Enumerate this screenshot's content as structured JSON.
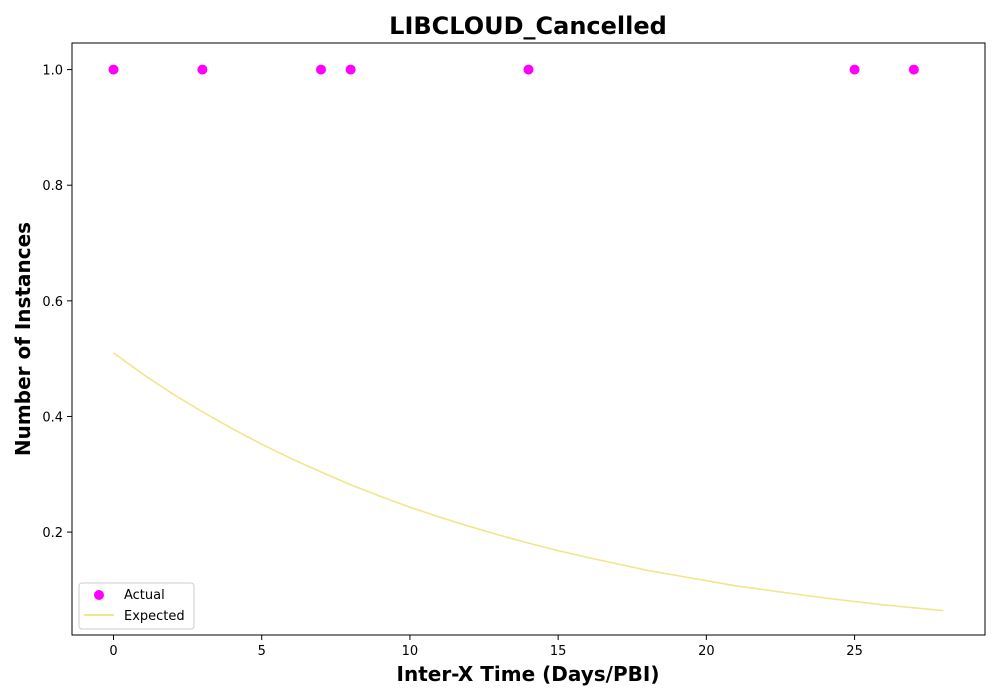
{
  "chart_data": {
    "type": "scatter",
    "title": "LIBCLOUD_Cancelled",
    "xlabel": "Inter-X Time (Days/PBI)",
    "ylabel": "Number of Instances",
    "xlim": [
      -1.4,
      29.4
    ],
    "ylim": [
      0.022,
      1.046
    ],
    "xticks": [
      0,
      5,
      10,
      15,
      20,
      25
    ],
    "yticks": [
      0.2,
      0.4,
      0.6,
      0.8,
      1.0
    ],
    "grid": false,
    "legend_position": "lower-left",
    "series": [
      {
        "name": "Actual",
        "kind": "scatter",
        "color": "#ff00ff",
        "x": [
          0,
          3,
          7,
          8,
          14,
          25,
          27
        ],
        "y": [
          1.0,
          1.0,
          1.0,
          1.0,
          1.0,
          1.0,
          1.0
        ]
      },
      {
        "name": "Expected",
        "kind": "line",
        "color": "#f0e68c",
        "x": [
          0,
          1,
          2,
          3,
          4,
          5,
          6,
          7,
          8,
          9,
          10,
          11,
          12,
          13,
          14,
          15,
          16,
          17,
          18,
          19,
          20,
          21,
          22,
          23,
          24,
          25,
          26,
          27,
          28
        ],
        "y": [
          0.51,
          0.473,
          0.439,
          0.408,
          0.379,
          0.352,
          0.327,
          0.304,
          0.282,
          0.262,
          0.243,
          0.226,
          0.21,
          0.195,
          0.181,
          0.168,
          0.156,
          0.145,
          0.134,
          0.125,
          0.116,
          0.107,
          0.1,
          0.093,
          0.086,
          0.08,
          0.074,
          0.069,
          0.064
        ]
      }
    ]
  }
}
